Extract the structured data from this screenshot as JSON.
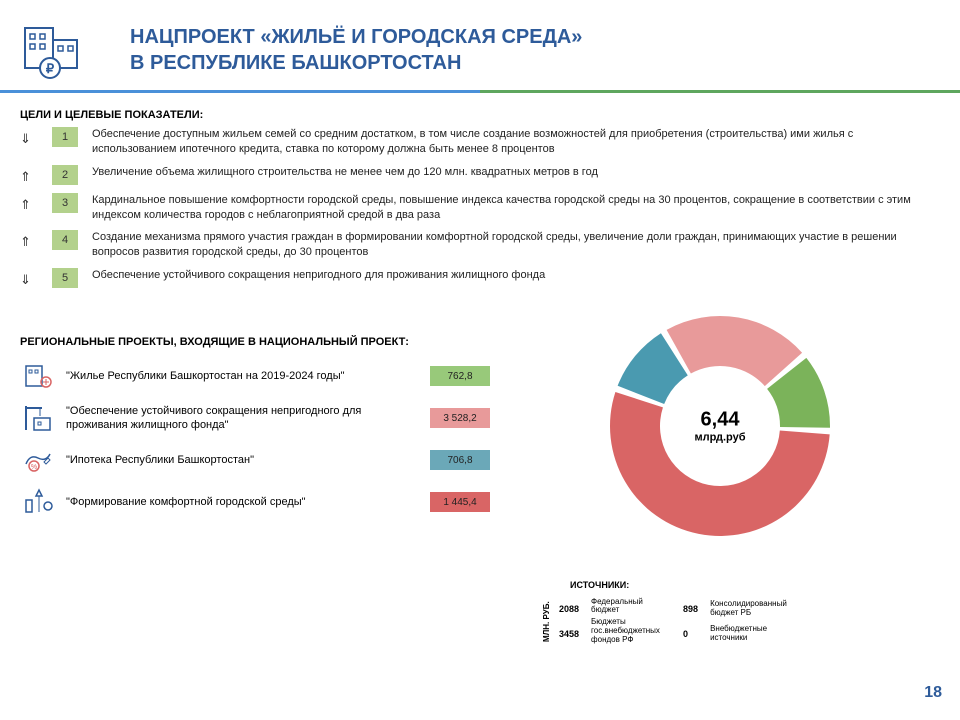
{
  "header": {
    "title_line1": "НАЦПРОЕКТ «ЖИЛЬЁ И ГОРОДСКАЯ СРЕДА»",
    "title_line2": "В РЕСПУБЛИКЕ БАШКОРТОСТАН"
  },
  "goals": {
    "section_title": "ЦЕЛИ И ЦЕЛЕВЫЕ ПОКАЗАТЕЛИ:",
    "items": [
      {
        "arrow": "⇓",
        "num": "1",
        "text": "Обеспечение доступным жильем семей со средним достатком, в том числе создание возможностей для приобретения (строительства) ими жилья с использованием ипотечного кредита, ставка по которому должна быть менее 8 процентов"
      },
      {
        "arrow": "⇑",
        "num": "2",
        "text": "Увеличение объема жилищного строительства не менее чем до 120 млн. квадратных метров в год"
      },
      {
        "arrow": "⇑",
        "num": "3",
        "text": "Кардинальное повышение комфортности городской среды, повышение индекса качества городской среды на 30 процентов, сокращение в соответствии с этим индексом количества городов с неблагоприятной средой в два раза"
      },
      {
        "arrow": "⇑",
        "num": "4",
        "text": "Создание механизма прямого участия граждан в формировании комфортной городской среды, увеличение доли граждан, принимающих участие в решении вопросов развития городской среды, до 30 процентов"
      },
      {
        "arrow": "⇓",
        "num": "5",
        "text": "Обеспечение устойчивого сокращения непригодного для проживания жилищного фонда"
      }
    ]
  },
  "projects": {
    "section_title": "РЕГИОНАЛЬНЫЕ ПРОЕКТЫ, ВХОДЯЩИЕ В НАЦИОНАЛЬНЫЙ ПРОЕКТ:",
    "items": [
      {
        "text": "\"Жилье Республики Башкортостан на 2019-2024 годы\"",
        "value": "762,8",
        "color": "#98c97a",
        "box_bg": "#98c97a"
      },
      {
        "text": "\"Обеспечение устойчивого сокращения непригодного для проживания жилищного фонда\"",
        "value": "3 528,2",
        "color": "#e89a9a",
        "box_bg": "#e89a9a"
      },
      {
        "text": "\"Ипотека Республики Башкортостан\"",
        "value": "706,8",
        "color": "#6ba8b8",
        "box_bg": "#6ba8b8"
      },
      {
        "text": "\"Формирование комфортной городской среды\"",
        "value": "1 445,4",
        "color": "#d96565",
        "box_bg": "#d96565"
      }
    ]
  },
  "donut": {
    "type": "donut",
    "center_value": "6,44",
    "center_unit": "млрд.руб",
    "slices": [
      {
        "value": 762.8,
        "color": "#7bb35a"
      },
      {
        "value": 3528.2,
        "color": "#d96565"
      },
      {
        "value": 706.8,
        "color": "#4a9ab0"
      },
      {
        "value": 1445.4,
        "color": "#e89a9a"
      }
    ],
    "inner_radius": 60,
    "outer_radius": 110,
    "background_color": "#ffffff",
    "start_angle": -40
  },
  "sources": {
    "label": "ИСТОЧНИКИ:",
    "ylabel": "МЛН. РУБ.",
    "rows": [
      {
        "v1": "2088",
        "t1": "Федеральный бюджет",
        "v2": "898",
        "t2": "Консолидированный бюджет РБ"
      },
      {
        "v1": "3458",
        "t1": "Бюджеты гос.внебюджетных фондов РФ",
        "v2": "0",
        "t2": "Внебюджетные источники"
      }
    ]
  },
  "page_number": "18",
  "colors": {
    "title_color": "#2e5b9a",
    "goal_badge": "#b3d18c",
    "logo_stroke": "#2e5b9a"
  }
}
